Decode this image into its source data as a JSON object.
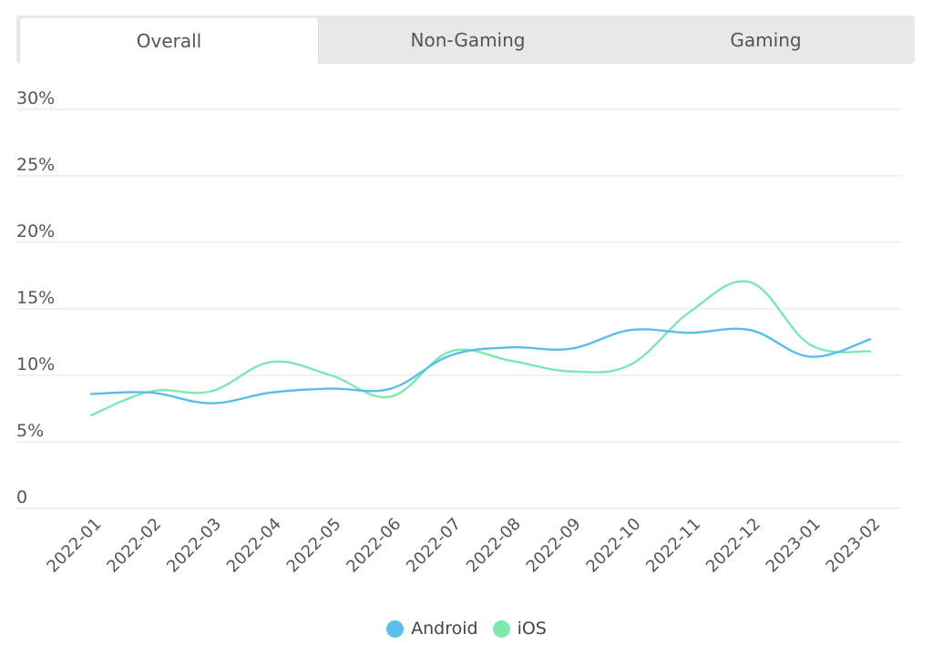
{
  "tabs": [
    {
      "label": "Overall",
      "active": true
    },
    {
      "label": "Non-Gaming",
      "active": false
    },
    {
      "label": "Gaming",
      "active": false
    }
  ],
  "chart_data": {
    "type": "line",
    "title": "",
    "xlabel": "",
    "ylabel": "",
    "categories": [
      "2022-01",
      "2022-02",
      "2022-03",
      "2022-04",
      "2022-05",
      "2022-06",
      "2022-07",
      "2022-08",
      "2022-09",
      "2022-10",
      "2022-11",
      "2022-12",
      "2023-01",
      "2023-02"
    ],
    "ylim": [
      0,
      30
    ],
    "yticks": [
      0,
      5,
      10,
      15,
      20,
      25,
      30
    ],
    "ytick_labels": [
      "0",
      "5%",
      "10%",
      "15%",
      "20%",
      "25%",
      "30%"
    ],
    "grid": true,
    "legend_position": "bottom",
    "series": [
      {
        "name": "Android",
        "color": "#5bbde9",
        "values": [
          8.6,
          8.7,
          7.9,
          8.7,
          9.0,
          9.0,
          11.5,
          12.1,
          12.0,
          13.4,
          13.2,
          13.4,
          11.4,
          12.7
        ]
      },
      {
        "name": "iOS",
        "color": "#7ee8b1",
        "values": [
          7.0,
          8.8,
          8.8,
          11.0,
          10.0,
          8.4,
          11.8,
          11.1,
          10.3,
          10.8,
          14.8,
          17.0,
          12.3,
          11.8
        ]
      }
    ]
  }
}
